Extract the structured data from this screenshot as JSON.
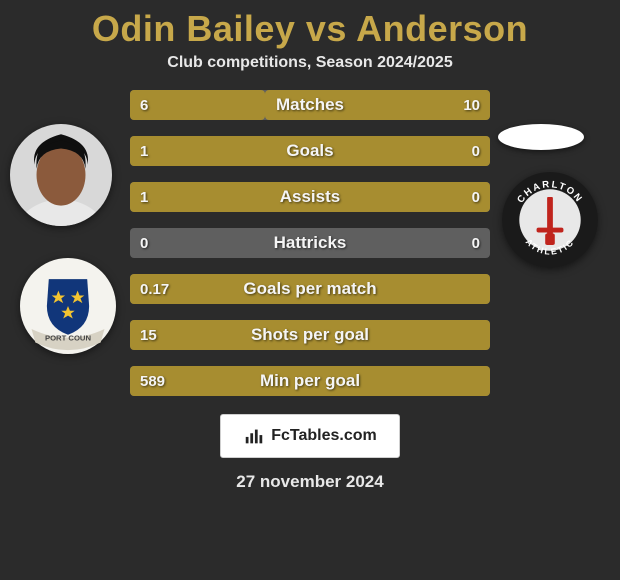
{
  "title_color": "#c7a84a",
  "title": "Odin Bailey vs Anderson",
  "subtitle": "Club competitions, Season 2024/2025",
  "bar_background_color": "#5f5f5f",
  "bar_fill_color": "#a78d30",
  "bars": [
    {
      "label": "Matches",
      "left_text": "6",
      "right_text": "10",
      "left_pct": 37.5,
      "right_pct": 62.5
    },
    {
      "label": "Goals",
      "left_text": "1",
      "right_text": "0",
      "left_pct": 100,
      "right_pct": 0
    },
    {
      "label": "Assists",
      "left_text": "1",
      "right_text": "0",
      "left_pct": 100,
      "right_pct": 0
    },
    {
      "label": "Hattricks",
      "left_text": "0",
      "right_text": "0",
      "left_pct": 0,
      "right_pct": 0
    },
    {
      "label": "Goals per match",
      "left_text": "0.17",
      "right_text": "",
      "left_pct": 100,
      "right_pct": 0
    },
    {
      "label": "Shots per goal",
      "left_text": "15",
      "right_text": "",
      "left_pct": 100,
      "right_pct": 0
    },
    {
      "label": "Min per goal",
      "left_text": "589",
      "right_text": "",
      "left_pct": 100,
      "right_pct": 0
    }
  ],
  "site": {
    "name": "FcTables.com"
  },
  "date": "27 november 2024",
  "badges": {
    "team_left": {
      "name": "port-county-crest",
      "bg": "#f4f3ee",
      "shield": "#11367a",
      "ribbon": "#d7d2c4",
      "ribbon_text": "PORT COUN"
    },
    "team_right": {
      "name": "charlton-athletic-crest",
      "outer": "#1a1a1a",
      "inner": "#e8e8e8",
      "sword": "#c0241d",
      "text_top": "CHARLTON",
      "text_bottom": "ATHLETIC"
    },
    "player_left": {
      "name": "odin-bailey-headshot",
      "skin": "#8b5a3c",
      "hair": "#0f0f0f",
      "shirt": "#e8e8e8"
    },
    "player_right": {
      "name": "anderson-placeholder"
    }
  }
}
